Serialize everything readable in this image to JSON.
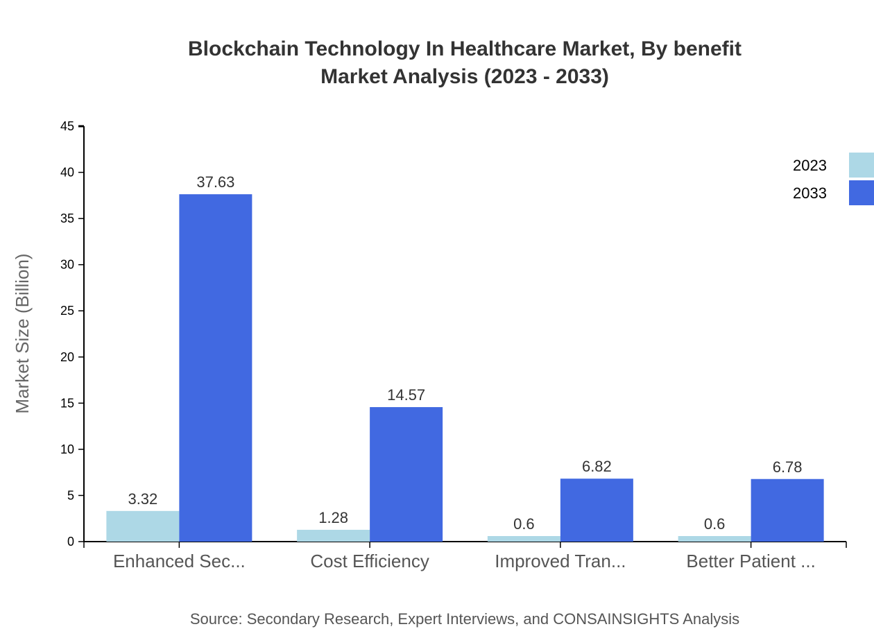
{
  "chart_data": {
    "type": "bar",
    "title": "Blockchain Technology In Healthcare Market, By benefit",
    "subtitle": "Market Analysis (2023 - 2033)",
    "ylabel": "Market Size (Billion)",
    "xlabel": "",
    "ylim": [
      0,
      45
    ],
    "yticks": [
      0,
      5,
      10,
      15,
      20,
      25,
      30,
      35,
      40,
      45
    ],
    "categories": [
      "Enhanced Sec...",
      "Cost Efficiency",
      "Improved Tran...",
      "Better Patient ..."
    ],
    "series": [
      {
        "name": "2023",
        "color": "#add8e6",
        "values": [
          3.32,
          1.28,
          0.6,
          0.6
        ]
      },
      {
        "name": "2033",
        "color": "#4169e1",
        "values": [
          37.63,
          14.57,
          6.82,
          6.78
        ]
      }
    ],
    "legend_position": "top-right",
    "grid": false,
    "source": "Source: Secondary Research, Expert Interviews, and CONSAINSIGHTS Analysis"
  }
}
